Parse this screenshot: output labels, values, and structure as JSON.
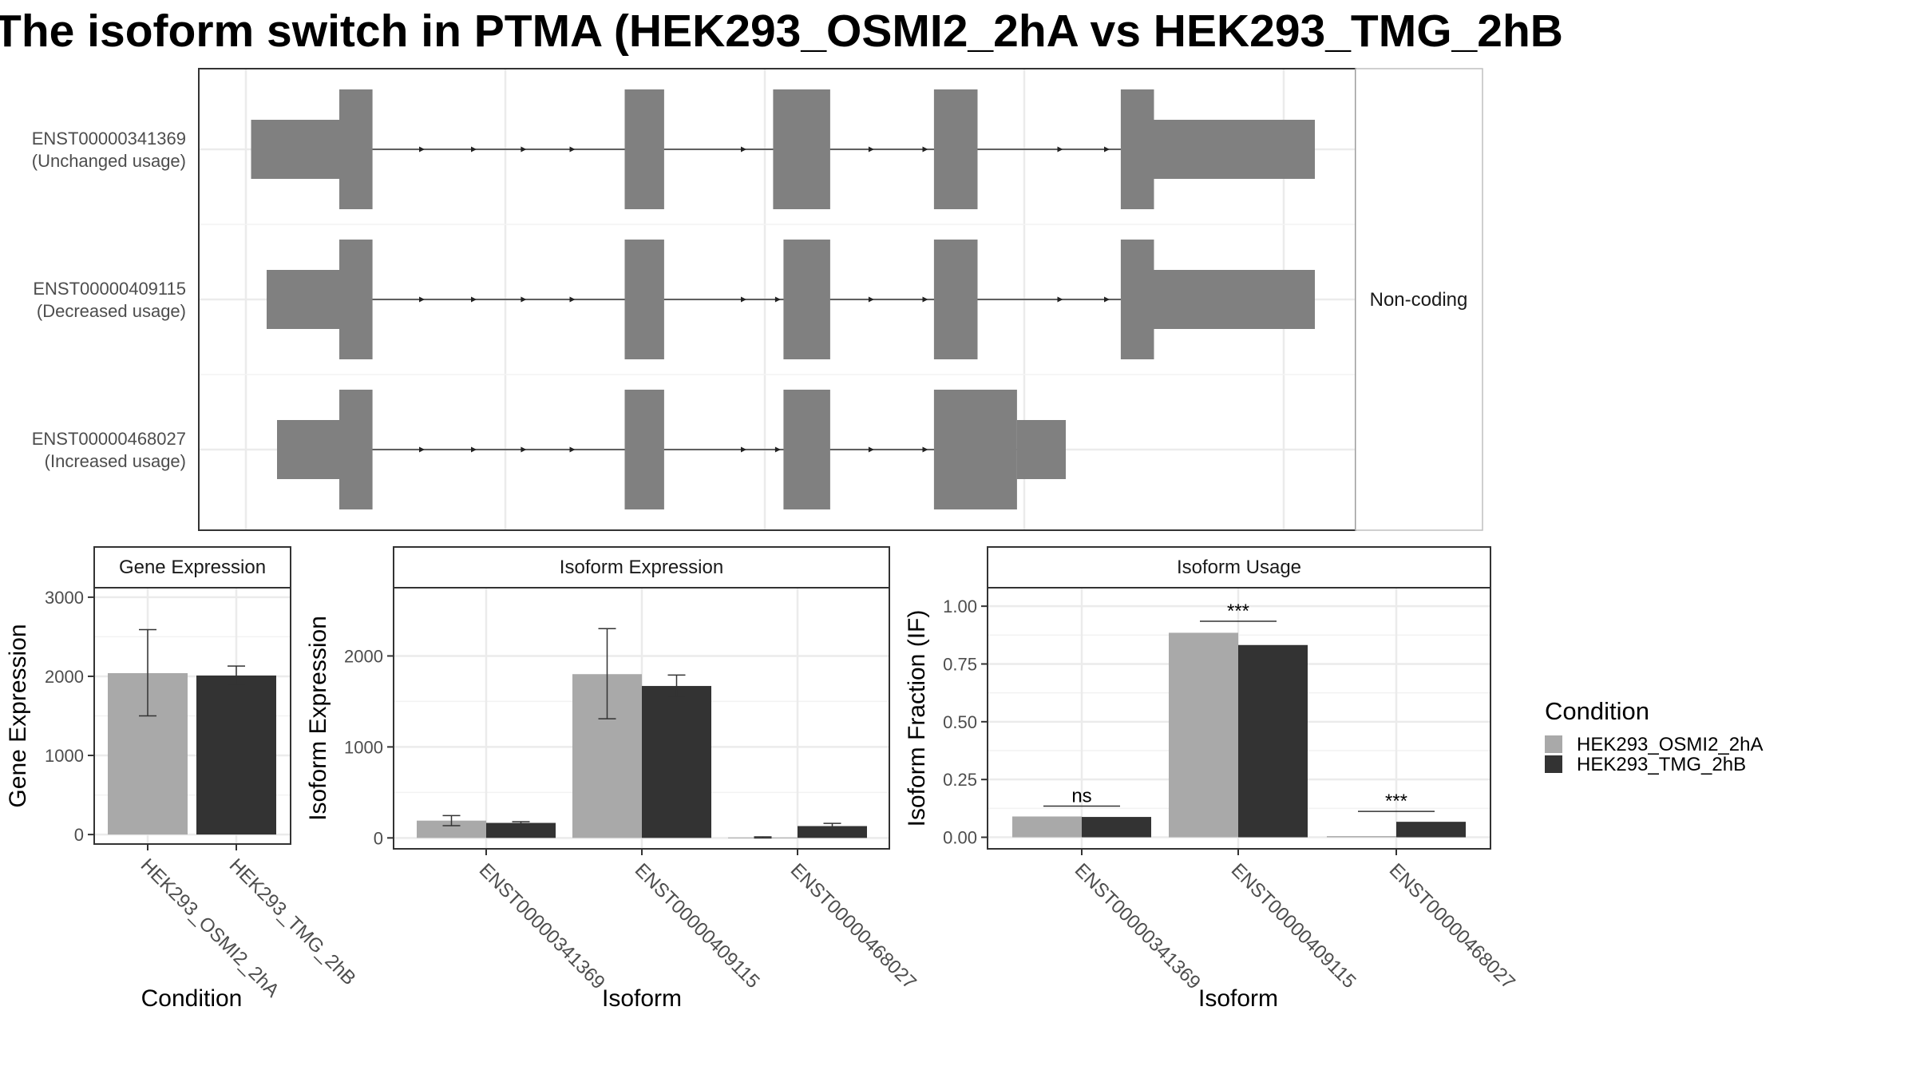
{
  "title": "The isoform switch in PTMA (HEK293_OSMI2_2hA vs HEK293_TMG_2hB",
  "colors": {
    "cond_a": "#a9a9a9",
    "cond_b": "#333333",
    "structure": "#808080",
    "grid": "#ebebeb",
    "frame": "#333333"
  },
  "chart_data": [
    {
      "type": "gene-structure",
      "strip_label": "Non-coding",
      "genomic_range": [
        0,
        100
      ],
      "transcripts": [
        {
          "id": "ENST00000341369",
          "status": "(Unchanged usage)",
          "exons": [
            {
              "start": 0.5,
              "end": 9,
              "kind": "utr"
            },
            {
              "start": 9,
              "end": 12.2,
              "kind": "cds"
            },
            {
              "start": 36.5,
              "end": 40.3,
              "kind": "cds"
            },
            {
              "start": 50.8,
              "end": 56.3,
              "kind": "cds"
            },
            {
              "start": 66.3,
              "end": 70.5,
              "kind": "cds"
            },
            {
              "start": 84.3,
              "end": 87.5,
              "kind": "cds"
            },
            {
              "start": 87.5,
              "end": 103,
              "kind": "utr"
            }
          ],
          "arrows": [
            17,
            22,
            26.8,
            31.5,
            48,
            51.3,
            60.3,
            65.5,
            78.5,
            83
          ]
        },
        {
          "id": "ENST00000409115",
          "status": "(Decreased usage)",
          "exons": [
            {
              "start": 2,
              "end": 9,
              "kind": "utr"
            },
            {
              "start": 9,
              "end": 12.2,
              "kind": "cds"
            },
            {
              "start": 36.5,
              "end": 40.3,
              "kind": "cds"
            },
            {
              "start": 51.8,
              "end": 56.3,
              "kind": "cds"
            },
            {
              "start": 66.3,
              "end": 70.5,
              "kind": "cds"
            },
            {
              "start": 84.3,
              "end": 87.5,
              "kind": "cds"
            },
            {
              "start": 87.5,
              "end": 103,
              "kind": "utr"
            }
          ],
          "arrows": [
            17,
            22,
            26.8,
            31.5,
            48,
            51.3,
            60.3,
            65.5,
            78.5,
            83
          ]
        },
        {
          "id": "ENST00000468027",
          "status": "(Increased usage)",
          "exons": [
            {
              "start": 3,
              "end": 9,
              "kind": "utr"
            },
            {
              "start": 9,
              "end": 12.2,
              "kind": "cds"
            },
            {
              "start": 36.5,
              "end": 40.3,
              "kind": "cds"
            },
            {
              "start": 51.8,
              "end": 56.3,
              "kind": "cds"
            },
            {
              "start": 66.3,
              "end": 74.3,
              "kind": "cds"
            },
            {
              "start": 74.3,
              "end": 79,
              "kind": "utr"
            }
          ],
          "arrows": [
            17,
            22,
            26.8,
            31.5,
            48,
            51.3,
            60.3,
            65.5
          ]
        }
      ]
    },
    {
      "type": "bar",
      "title": "Gene Expression",
      "xlabel": "Condition",
      "ylabel": "Gene Expression",
      "ylim": [
        -120,
        3120
      ],
      "yticks": [
        0,
        1000,
        2000,
        3000
      ],
      "categories": [
        "HEK293_OSMI2_2hA",
        "HEK293_TMG_2hB"
      ],
      "values": [
        2040,
        2010
      ],
      "errors": [
        [
          1500,
          2590
        ],
        [
          1900,
          2130
        ]
      ],
      "colors": [
        "#a9a9a9",
        "#333333"
      ]
    },
    {
      "type": "bar",
      "title": "Isoform Expression",
      "xlabel": "Isoform",
      "ylabel": "Isoform Expression",
      "ylim": [
        -120,
        2750
      ],
      "yticks": [
        0,
        1000,
        2000
      ],
      "categories": [
        "ENST00000341369",
        "ENST00000409115",
        "ENST00000468027"
      ],
      "series": [
        {
          "name": "HEK293_OSMI2_2hA",
          "values": [
            190,
            1800,
            5
          ],
          "errors": [
            [
              135,
              245
            ],
            [
              1310,
              2300
            ],
            [
              0,
              12
            ]
          ]
        },
        {
          "name": "HEK293_TMG_2hB",
          "values": [
            165,
            1670,
            130
          ],
          "errors": [
            [
              150,
              178
            ],
            [
              1555,
              1790
            ],
            [
              110,
              160
            ]
          ]
        }
      ]
    },
    {
      "type": "bar",
      "title": "Isoform Usage",
      "xlabel": "Isoform",
      "ylabel": "Isoform Fraction (IF)",
      "ylim": [
        -0.05,
        1.08
      ],
      "yticks": [
        0.0,
        0.25,
        0.5,
        0.75,
        1.0
      ],
      "ytick_labels": [
        "0.00",
        "0.25",
        "0.50",
        "0.75",
        "1.00"
      ],
      "categories": [
        "ENST00000341369",
        "ENST00000409115",
        "ENST00000468027"
      ],
      "series": [
        {
          "name": "HEK293_OSMI2_2hA",
          "values": [
            0.09,
            0.885,
            0.005
          ]
        },
        {
          "name": "HEK293_TMG_2hB",
          "values": [
            0.088,
            0.832,
            0.067
          ]
        }
      ],
      "significance": [
        {
          "category": 0,
          "label": "ns",
          "y": 0.135
        },
        {
          "category": 1,
          "label": "***",
          "y": 0.935
        },
        {
          "category": 2,
          "label": "***",
          "y": 0.112
        }
      ]
    }
  ],
  "legend": {
    "title": "Condition",
    "items": [
      {
        "label": "HEK293_OSMI2_2hA",
        "color": "#a9a9a9"
      },
      {
        "label": "HEK293_TMG_2hB",
        "color": "#333333"
      }
    ]
  }
}
